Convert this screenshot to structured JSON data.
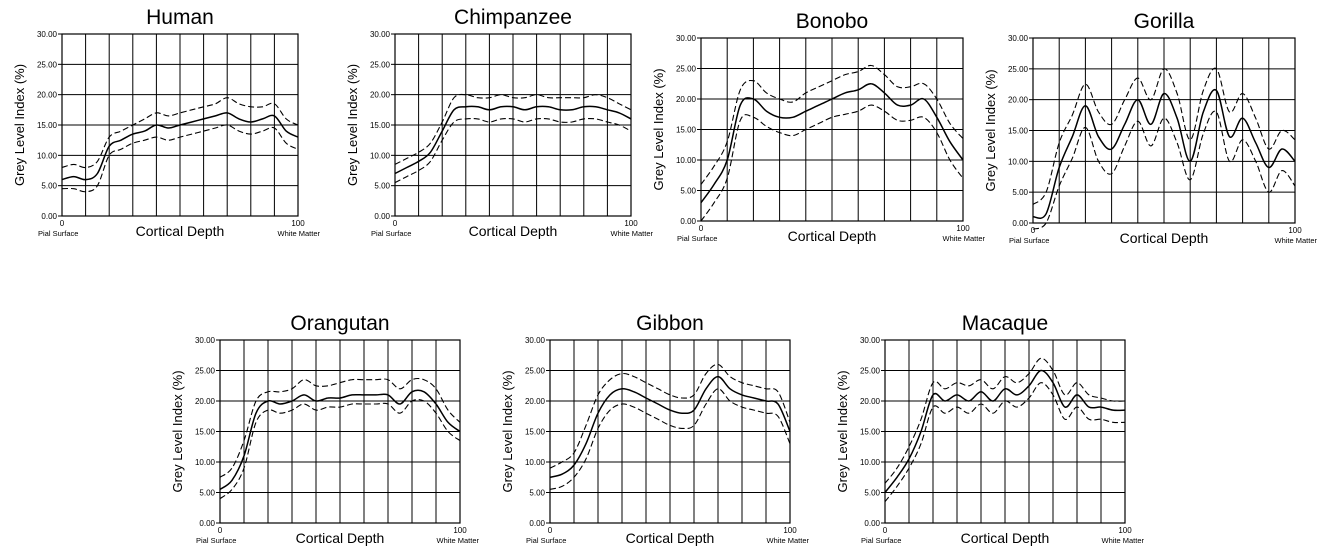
{
  "chart_data": [
    {
      "type": "line",
      "title": "Human",
      "xlabel": "Cortical Depth",
      "ylabel": "Grey Level Index (%)",
      "x_left_label": "Pial Surface",
      "x_right_label": "White Matter",
      "xlim": [
        0,
        100
      ],
      "ylim": [
        0,
        30
      ],
      "grid": true,
      "x_ticks": [
        "0",
        "100"
      ],
      "y_ticks": [
        "0.00",
        "5.00",
        "10.00",
        "15.00",
        "20.00",
        "25.00",
        "30.00"
      ],
      "x": [
        0,
        5,
        10,
        15,
        20,
        25,
        30,
        35,
        40,
        45,
        50,
        55,
        60,
        65,
        70,
        75,
        80,
        85,
        90,
        95,
        100
      ],
      "series": [
        {
          "style": "solid",
          "values": [
            6,
            6.5,
            6,
            7,
            11.5,
            12.5,
            13.5,
            14,
            15,
            14.5,
            15,
            15.5,
            16,
            16.5,
            17,
            16,
            15.5,
            16,
            16.5,
            14,
            13
          ]
        },
        {
          "style": "dashed",
          "values": [
            8,
            8.5,
            8,
            9,
            13,
            14,
            15,
            16,
            17,
            16.5,
            17,
            17.5,
            18,
            18.5,
            19.5,
            18.5,
            18,
            18,
            18.5,
            16,
            15
          ]
        },
        {
          "style": "dashed",
          "values": [
            4.5,
            4.5,
            4,
            5,
            10,
            11,
            12,
            12.5,
            13,
            12.5,
            13,
            13.5,
            14,
            14.5,
            15,
            14,
            13.5,
            14,
            14.5,
            12,
            11
          ]
        }
      ]
    },
    {
      "type": "line",
      "title": "Chimpanzee",
      "xlabel": "Cortical Depth",
      "ylabel": "Grey Level Index (%)",
      "x_left_label": "Pial Surface",
      "x_right_label": "White Matter",
      "xlim": [
        0,
        100
      ],
      "ylim": [
        0,
        30
      ],
      "grid": true,
      "x_ticks": [
        "0",
        "100"
      ],
      "y_ticks": [
        "0.00",
        "5.00",
        "10.00",
        "15.00",
        "20.00",
        "25.00",
        "30.00"
      ],
      "x": [
        0,
        5,
        10,
        15,
        20,
        25,
        30,
        35,
        40,
        45,
        50,
        55,
        60,
        65,
        70,
        75,
        80,
        85,
        90,
        95,
        100
      ],
      "series": [
        {
          "style": "solid",
          "values": [
            7,
            8,
            9,
            10.5,
            14,
            17.5,
            18,
            18,
            17.5,
            18,
            18,
            17.5,
            18,
            18,
            17.5,
            17.5,
            18,
            18,
            17.5,
            17,
            16
          ]
        },
        {
          "style": "dashed",
          "values": [
            8.5,
            9.5,
            10.5,
            12,
            15.5,
            19.5,
            20,
            19.5,
            19.5,
            20,
            19.5,
            19.5,
            20,
            19.5,
            19.5,
            19.5,
            19.5,
            20,
            19.5,
            18.5,
            17.5
          ]
        },
        {
          "style": "dashed",
          "values": [
            5.5,
            6.5,
            7.5,
            9,
            12.5,
            15.5,
            16,
            16,
            15.5,
            16,
            16,
            15.5,
            16,
            16,
            15.5,
            15.5,
            16,
            16,
            15.5,
            15,
            14
          ]
        }
      ]
    },
    {
      "type": "line",
      "title": "Bonobo",
      "xlabel": "Cortical Depth",
      "ylabel": "Grey Level Index (%)",
      "x_left_label": "Pial Surface",
      "x_right_label": "White Matter",
      "xlim": [
        0,
        100
      ],
      "ylim": [
        0,
        30
      ],
      "grid": true,
      "x_ticks": [
        "0",
        "100"
      ],
      "y_ticks": [
        "0.00",
        "5.00",
        "10.00",
        "15.00",
        "20.00",
        "25.00",
        "30.00"
      ],
      "x": [
        0,
        5,
        10,
        15,
        20,
        25,
        30,
        35,
        40,
        45,
        50,
        55,
        60,
        65,
        70,
        75,
        80,
        85,
        90,
        95,
        100
      ],
      "series": [
        {
          "style": "solid",
          "values": [
            3,
            6,
            10,
            19,
            20,
            18,
            17,
            17,
            18,
            19,
            20,
            21,
            21.5,
            22.5,
            21,
            19,
            19,
            20,
            17,
            13,
            10
          ]
        },
        {
          "style": "dashed",
          "values": [
            6,
            9,
            13,
            21.5,
            23,
            21,
            20,
            19.5,
            21,
            22,
            23,
            24,
            24.5,
            25.5,
            24,
            22,
            22,
            22.5,
            20,
            16,
            13.5
          ]
        },
        {
          "style": "dashed",
          "values": [
            0,
            3,
            7,
            16.5,
            17,
            15.5,
            14.5,
            14,
            15,
            16,
            17,
            17.5,
            18,
            19,
            18,
            16.5,
            16.5,
            17,
            14.5,
            10,
            7
          ]
        }
      ]
    },
    {
      "type": "line",
      "title": "Gorilla",
      "xlabel": "Cortical Depth",
      "ylabel": "Grey Level Index (%)",
      "x_left_label": "Pial Surface",
      "x_right_label": "White Matter",
      "xlim": [
        0,
        100
      ],
      "ylim": [
        0,
        30
      ],
      "grid": true,
      "x_ticks": [
        "0",
        "100"
      ],
      "y_ticks": [
        "0.00",
        "5.00",
        "10.00",
        "15.00",
        "20.00",
        "25.00",
        "30.00"
      ],
      "x": [
        0,
        5,
        10,
        15,
        20,
        25,
        30,
        35,
        40,
        45,
        50,
        55,
        60,
        65,
        70,
        75,
        80,
        85,
        90,
        95,
        100
      ],
      "series": [
        {
          "style": "solid",
          "values": [
            1,
            1.5,
            9,
            14,
            19,
            14,
            12,
            16,
            20,
            16,
            21,
            17,
            10,
            18,
            21.5,
            14,
            17,
            13,
            9,
            12,
            10
          ]
        },
        {
          "style": "dashed",
          "values": [
            3,
            5,
            13,
            17.5,
            22.5,
            18,
            16,
            20,
            23.5,
            20,
            25,
            21,
            13.5,
            21.5,
            25,
            18,
            21,
            17,
            12,
            15,
            13.5
          ]
        },
        {
          "style": "dashed",
          "values": [
            -1,
            0,
            6,
            10.5,
            15.5,
            10,
            8,
            12.5,
            16.5,
            12.5,
            17,
            13,
            7,
            14.5,
            18,
            10,
            13.5,
            10,
            5,
            8.5,
            6
          ]
        }
      ]
    },
    {
      "type": "line",
      "title": "Orangutan",
      "xlabel": "Cortical Depth",
      "ylabel": "Grey Level Index (%)",
      "x_left_label": "Pial Surface",
      "x_right_label": "White Matter",
      "xlim": [
        0,
        100
      ],
      "ylim": [
        0,
        30
      ],
      "grid": true,
      "x_ticks": [
        "0",
        "100"
      ],
      "y_ticks": [
        "0.00",
        "5.00",
        "10.00",
        "15.00",
        "20.00",
        "25.00",
        "30.00"
      ],
      "x": [
        0,
        5,
        10,
        15,
        20,
        25,
        30,
        35,
        40,
        45,
        50,
        55,
        60,
        65,
        70,
        75,
        80,
        85,
        90,
        95,
        100
      ],
      "series": [
        {
          "style": "solid",
          "values": [
            5.5,
            7,
            11,
            18,
            20,
            19.5,
            20,
            21,
            20,
            20.5,
            20.5,
            21,
            21,
            21,
            21,
            19.5,
            21.5,
            21.5,
            19.5,
            16.5,
            15
          ]
        },
        {
          "style": "dashed",
          "values": [
            7.5,
            9,
            13.5,
            20,
            21.5,
            21.5,
            22,
            23.5,
            22.5,
            22.5,
            23,
            23.5,
            23.5,
            23.5,
            23.5,
            22,
            23.5,
            23.5,
            22,
            18.5,
            16.5
          ]
        },
        {
          "style": "dashed",
          "values": [
            4,
            5.5,
            9,
            16.5,
            18.5,
            18,
            18.5,
            19.5,
            18.5,
            19,
            19,
            19.5,
            19.5,
            19.5,
            19.5,
            18,
            20,
            20,
            18,
            15,
            13.5
          ]
        }
      ]
    },
    {
      "type": "line",
      "title": "Gibbon",
      "xlabel": "Cortical Depth",
      "ylabel": "Grey Level Index (%)",
      "x_left_label": "Pial Surface",
      "x_right_label": "White Matter",
      "xlim": [
        0,
        100
      ],
      "ylim": [
        0,
        30
      ],
      "grid": true,
      "x_ticks": [
        "0",
        "100"
      ],
      "y_ticks": [
        "0.00",
        "5.00",
        "10.00",
        "15.00",
        "20.00",
        "25.00",
        "30.00"
      ],
      "x": [
        0,
        5,
        10,
        15,
        20,
        25,
        30,
        35,
        40,
        45,
        50,
        55,
        60,
        65,
        70,
        75,
        80,
        85,
        90,
        95,
        100
      ],
      "series": [
        {
          "style": "solid",
          "values": [
            7.5,
            8,
            9.5,
            13,
            18,
            21,
            22,
            21.5,
            20.5,
            19.5,
            18.5,
            18,
            18.5,
            22,
            24,
            22,
            21,
            20.5,
            20,
            19.5,
            15
          ]
        },
        {
          "style": "dashed",
          "values": [
            9,
            10,
            11.5,
            16,
            21,
            23.5,
            24.5,
            24,
            23,
            22,
            21,
            20.5,
            21,
            24.5,
            26,
            24,
            23,
            22.5,
            22,
            21.5,
            16.5
          ]
        },
        {
          "style": "dashed",
          "values": [
            5.5,
            6,
            7.5,
            10.5,
            15.5,
            18.5,
            19.5,
            19,
            18,
            17,
            16,
            15.5,
            16,
            19.5,
            22,
            20,
            19,
            18.5,
            18,
            17.5,
            13
          ]
        }
      ]
    },
    {
      "type": "line",
      "title": "Macaque",
      "xlabel": "Cortical Depth",
      "ylabel": "Grey Level Index (%)",
      "x_left_label": "Pial Surface",
      "x_right_label": "White Matter",
      "xlim": [
        0,
        100
      ],
      "ylim": [
        0,
        30
      ],
      "grid": true,
      "x_ticks": [
        "0",
        "100"
      ],
      "y_ticks": [
        "0.00",
        "5.00",
        "10.00",
        "15.00",
        "20.00",
        "25.00",
        "30.00"
      ],
      "x": [
        0,
        5,
        10,
        15,
        20,
        25,
        30,
        35,
        40,
        45,
        50,
        55,
        60,
        65,
        70,
        75,
        80,
        85,
        90,
        95,
        100
      ],
      "series": [
        {
          "style": "solid",
          "values": [
            5,
            7.5,
            10.5,
            15,
            21,
            20,
            21,
            20,
            21.5,
            20,
            22,
            21,
            22.5,
            25,
            23,
            19,
            21,
            19,
            19,
            18.5,
            18.5
          ]
        },
        {
          "style": "dashed",
          "values": [
            6.5,
            9,
            12.5,
            17,
            23,
            22,
            23,
            22.5,
            23.5,
            22,
            24,
            23,
            24.5,
            27,
            25,
            21,
            23,
            21,
            20.5,
            20,
            20
          ]
        },
        {
          "style": "dashed",
          "values": [
            3.5,
            6,
            9,
            13,
            19,
            18,
            19,
            18,
            19.5,
            18,
            20,
            19,
            20.5,
            23,
            21,
            17,
            19,
            17,
            17,
            16.5,
            16.5
          ]
        }
      ]
    }
  ]
}
